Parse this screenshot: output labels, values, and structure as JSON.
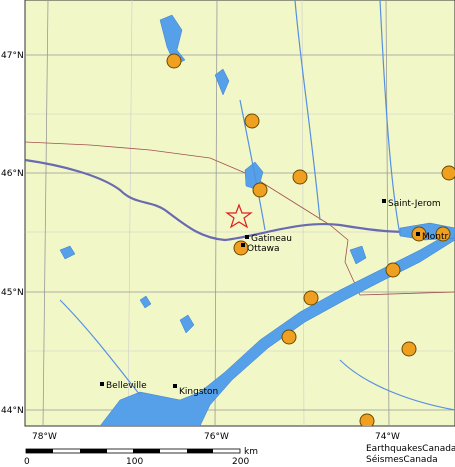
{
  "map": {
    "lat_labels": [
      "47°N",
      "46°N",
      "45°N",
      "44°N"
    ],
    "lon_labels": [
      "78°W",
      "76°W",
      "74°W"
    ],
    "cities": [
      "Belleville",
      "Kingston",
      "Ottawa",
      "Gatineau",
      "Saint-Jerom",
      "Montr"
    ],
    "scale": {
      "labels": [
        "0",
        "100",
        "200"
      ],
      "unit": "km"
    },
    "credits": [
      "EarthquakesCanada",
      "SéismesCanada"
    ]
  }
}
